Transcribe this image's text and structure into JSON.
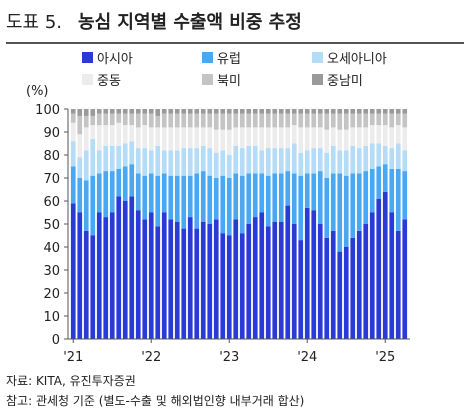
{
  "title": {
    "number": "도표 5.",
    "text": "농심 지역별 수출액 비중 추정"
  },
  "unit_label": "(%)",
  "source": "자료: KITA, 유진투자증권",
  "note": "참고: 관세청 기준 (별도-수출 및 해외법인향 내부거래 합산)",
  "chart_data": {
    "type": "bar",
    "stacked": true,
    "title": "농심 지역별 수출액 비중 추정",
    "ylabel": "(%)",
    "ylim": [
      0,
      100
    ],
    "yticks": [
      0,
      10,
      20,
      30,
      40,
      50,
      60,
      70,
      80,
      90,
      100
    ],
    "grid": false,
    "legend_position": "top",
    "x_tick_labels": [
      {
        "index": 0,
        "label": "'21"
      },
      {
        "index": 12,
        "label": "'22"
      },
      {
        "index": 24,
        "label": "'23"
      },
      {
        "index": 36,
        "label": "'24"
      },
      {
        "index": 48,
        "label": "'25"
      }
    ],
    "series": [
      {
        "name": "아시아",
        "color": "#2a3ad6",
        "values": [
          59,
          55,
          47,
          45,
          55,
          53,
          55,
          62,
          60,
          62,
          56,
          52,
          55,
          49,
          55,
          52,
          51,
          48,
          53,
          48,
          51,
          50,
          52,
          46,
          45,
          52,
          46,
          50,
          53,
          55,
          49,
          51,
          51,
          58,
          50,
          43,
          57,
          56,
          50,
          44,
          47,
          38,
          40,
          44,
          47,
          50,
          55,
          61,
          64,
          55,
          47,
          52
        ]
      },
      {
        "name": "유럽",
        "color": "#4aa8f2",
        "values": [
          16,
          15,
          22,
          26,
          17,
          20,
          18,
          12,
          15,
          14,
          16,
          19,
          17,
          22,
          17,
          19,
          20,
          23,
          18,
          24,
          22,
          21,
          18,
          25,
          25,
          20,
          25,
          22,
          19,
          17,
          22,
          21,
          21,
          15,
          22,
          28,
          15,
          16,
          23,
          26,
          25,
          34,
          31,
          28,
          25,
          23,
          19,
          14,
          12,
          19,
          27,
          21
        ]
      },
      {
        "name": "오세아니아",
        "color": "#b4dcf6",
        "values": [
          11,
          9,
          13,
          16,
          10,
          11,
          11,
          10,
          10,
          10,
          11,
          12,
          10,
          13,
          10,
          11,
          11,
          12,
          12,
          11,
          11,
          12,
          11,
          11,
          10,
          12,
          12,
          12,
          12,
          10,
          12,
          11,
          11,
          10,
          13,
          10,
          10,
          11,
          10,
          11,
          12,
          10,
          11,
          12,
          11,
          11,
          11,
          10,
          8,
          9,
          11,
          9
        ]
      },
      {
        "name": "중동",
        "color": "#ececec",
        "values": [
          8,
          10,
          10,
          6,
          11,
          9,
          9,
          10,
          8,
          7,
          9,
          10,
          10,
          8,
          10,
          10,
          10,
          9,
          9,
          9,
          8,
          9,
          10,
          9,
          11,
          8,
          9,
          8,
          8,
          10,
          9,
          9,
          9,
          9,
          8,
          11,
          10,
          9,
          9,
          10,
          8,
          9,
          9,
          8,
          9,
          8,
          8,
          8,
          9,
          9,
          8,
          10
        ]
      },
      {
        "name": "북미",
        "color": "#c4c4c4",
        "values": [
          4,
          8,
          5,
          4,
          5,
          5,
          5,
          4,
          5,
          5,
          6,
          5,
          6,
          5,
          6,
          6,
          6,
          6,
          6,
          6,
          6,
          6,
          7,
          7,
          7,
          6,
          6,
          6,
          6,
          6,
          6,
          6,
          6,
          6,
          5,
          6,
          6,
          6,
          6,
          7,
          6,
          7,
          7,
          6,
          6,
          6,
          5,
          5,
          5,
          6,
          5,
          6
        ]
      },
      {
        "name": "중남미",
        "color": "#9a9a9a",
        "values": [
          2,
          3,
          3,
          3,
          2,
          2,
          2,
          2,
          2,
          2,
          2,
          2,
          2,
          3,
          2,
          2,
          2,
          2,
          2,
          2,
          2,
          2,
          2,
          2,
          2,
          2,
          2,
          2,
          2,
          2,
          2,
          2,
          2,
          2,
          2,
          2,
          2,
          2,
          2,
          2,
          2,
          2,
          2,
          2,
          2,
          2,
          2,
          2,
          2,
          2,
          2,
          2
        ]
      }
    ]
  }
}
